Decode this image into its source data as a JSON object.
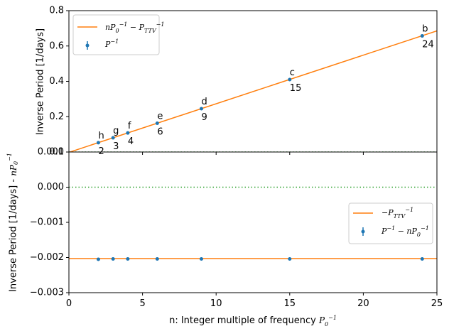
{
  "chart_data": [
    {
      "type": "scatter",
      "panel": "top",
      "xlabel": "",
      "ylabel": "Inverse Period [1/days]",
      "xlim": [
        0,
        25
      ],
      "ylim": [
        0,
        0.8
      ],
      "yticks": [
        0.0,
        0.2,
        0.4,
        0.6,
        0.8
      ],
      "ytick_labels": [
        "0.0",
        "0.2",
        "0.4",
        "0.6",
        "0.8"
      ],
      "colors": {
        "points": "#1f77b4",
        "fit": "#ff7f0e",
        "zero": "#2ca02c"
      },
      "legend_position": "upper-left",
      "legend": [
        "nP₀⁻¹ − P_TTV⁻¹",
        "P⁻¹"
      ],
      "fit_line": {
        "x": [
          0,
          25
        ],
        "y": [
          -0.00205,
          0.6858
        ]
      },
      "zero_line": {
        "y": 0,
        "style": "dotted"
      },
      "points": [
        {
          "x": 2,
          "y": 0.0529,
          "letter": "h",
          "n_label": "2"
        },
        {
          "x": 3,
          "y": 0.0803,
          "letter": "g",
          "n_label": "3"
        },
        {
          "x": 4,
          "y": 0.1078,
          "letter": "f",
          "n_label": "4"
        },
        {
          "x": 6,
          "y": 0.1627,
          "letter": "e",
          "n_label": "6"
        },
        {
          "x": 9,
          "y": 0.2451,
          "letter": "d",
          "n_label": "9"
        },
        {
          "x": 15,
          "y": 0.4099,
          "letter": "c",
          "n_label": "15"
        },
        {
          "x": 24,
          "y": 0.6571,
          "letter": "b",
          "n_label": "24"
        }
      ]
    },
    {
      "type": "scatter",
      "panel": "bottom",
      "xlabel": "n: Integer multiple of frequency P₀⁻¹",
      "ylabel": "Inverse Period [1/days] - nP₀⁻¹",
      "xlim": [
        0,
        25
      ],
      "ylim": [
        -0.003,
        0.001
      ],
      "xticks": [
        0,
        5,
        10,
        15,
        20,
        25
      ],
      "xtick_labels": [
        "0",
        "5",
        "10",
        "15",
        "20",
        "25"
      ],
      "yticks": [
        -0.003,
        -0.002,
        -0.001,
        0.0,
        0.001
      ],
      "ytick_labels": [
        "−0.003",
        "−0.002",
        "−0.001",
        "0.000",
        "0.001"
      ],
      "legend_position": "center-right",
      "legend": [
        "−P_TTV⁻¹",
        "P⁻¹ − nP₀⁻¹"
      ],
      "fit_line": {
        "y": -0.00203
      },
      "zero_line": {
        "y": 0,
        "style": "dotted"
      },
      "points": [
        {
          "x": 2,
          "y": -0.00205
        },
        {
          "x": 3,
          "y": -0.00204
        },
        {
          "x": 4,
          "y": -0.00204
        },
        {
          "x": 6,
          "y": -0.00204
        },
        {
          "x": 9,
          "y": -0.00204
        },
        {
          "x": 15,
          "y": -0.00204
        },
        {
          "x": 24,
          "y": -0.00204
        }
      ]
    }
  ]
}
